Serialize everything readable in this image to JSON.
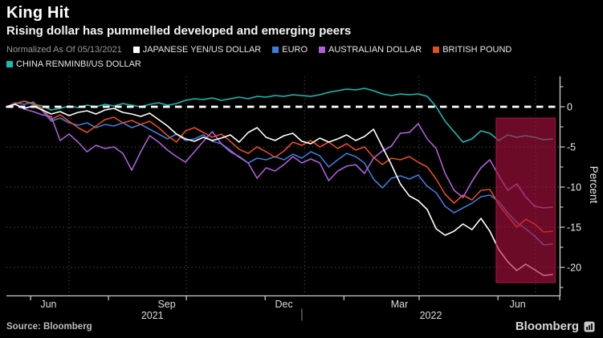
{
  "header": {
    "title": "King Hit",
    "subtitle": "Rising dollar has pummelled developed and emerging peers"
  },
  "legend": {
    "note": "Normalized As Of 05/13/2021",
    "rows": [
      [
        {
          "label": "JAPANESE YEN/US DOLLAR",
          "color": "#FFFFFF"
        },
        {
          "label": "EURO",
          "color": "#3B7CDC"
        },
        {
          "label": "AUSTRALIAN DOLLAR",
          "color": "#AE5FD9"
        },
        {
          "label": "BRITISH POUND",
          "color": "#E54D1F"
        }
      ],
      [
        {
          "label": "CHINA RENMINBI/US DOLLAR",
          "color": "#16BDB4"
        }
      ]
    ]
  },
  "footer": {
    "source": "Source: Bloomberg",
    "brand": "Bloomberg"
  },
  "chart_data": {
    "type": "line",
    "title": "King Hit",
    "subtitle": "Rising dollar has pummelled developed and emerging peers",
    "ylabel": "Percent",
    "ylim": [
      -23.5,
      3.8
    ],
    "y_ticks": [
      0,
      -5,
      -10,
      -15,
      -20
    ],
    "y_minor_ticks": [
      2.5,
      -2.5,
      -7.5,
      -12.5,
      -17.5,
      -22.5
    ],
    "grid": true,
    "legend_position": "top",
    "x_axis": {
      "start_date": "2021-05-13",
      "unit": "weeks since 2021-05-13",
      "month_labels": [
        {
          "label": "Jun",
          "week": 4.7
        },
        {
          "label": "Sep",
          "week": 17.9
        },
        {
          "label": "Dec",
          "week": 31.0
        },
        {
          "label": "Mar",
          "week": 43.9
        },
        {
          "label": "Jun",
          "week": 57.1
        }
      ],
      "year_labels": [
        {
          "label": "2021",
          "week": 16.3
        },
        {
          "label": "2022",
          "week": 47.4
        }
      ],
      "year_divider_week": 33.0,
      "tick_weeks": [
        2.7,
        11.4,
        20.1,
        28.9,
        37.7,
        46.1,
        54.9,
        61.8
      ],
      "gridline_weeks": [
        7.0,
        20.1,
        33.3,
        46.1,
        59.1
      ]
    },
    "zero_line": {
      "value": 0,
      "color": "#FFFFFF",
      "style": "dashed"
    },
    "highlight_region": {
      "start_week": 54.7,
      "end_week": 61.3,
      "from": -1.4,
      "to": -21.9,
      "color": "#AE1240",
      "opacity": 0.62,
      "border_color": "#C51349"
    },
    "series": [
      {
        "name": "JAPANESE YEN/US DOLLAR",
        "color": "#FFFFFF",
        "values": [
          0,
          0.3,
          -0.2,
          0.1,
          -0.4,
          -0.9,
          -0.6,
          -1.1,
          -0.7,
          -0.5,
          -0.9,
          -0.4,
          -0.2,
          -0.7,
          -0.9,
          -1.2,
          -0.8,
          -1.6,
          -2.4,
          -3.4,
          -4.0,
          -4.3,
          -3.8,
          -4.2,
          -3.9,
          -3.5,
          -4.4,
          -3.2,
          -2.6,
          -3.8,
          -4.2,
          -3.6,
          -3.3,
          -4.3,
          -4.6,
          -3.9,
          -4.4,
          -4.0,
          -3.5,
          -4.2,
          -3.7,
          -2.8,
          -5.0,
          -7.2,
          -9.6,
          -11.1,
          -11.7,
          -12.8,
          -15.2,
          -16.0,
          -15.5,
          -14.6,
          -15.3,
          -13.9,
          -15.5,
          -17.8,
          -19.3,
          -20.4,
          -19.6,
          -20.3,
          -21.0,
          -20.9
        ]
      },
      {
        "name": "EURO",
        "color": "#3B7CDC",
        "values": [
          0,
          0.5,
          0.3,
          0.6,
          -0.5,
          -1.8,
          -1.4,
          -2.0,
          -2.3,
          -2.0,
          -2.6,
          -2.2,
          -2.4,
          -2.0,
          -2.6,
          -2.2,
          -2.8,
          -3.4,
          -4.0,
          -3.4,
          -4.2,
          -4.0,
          -3.5,
          -4.3,
          -4.6,
          -5.4,
          -6.3,
          -7.0,
          -6.4,
          -6.6,
          -6.2,
          -6.6,
          -5.9,
          -6.4,
          -5.6,
          -6.1,
          -7.5,
          -6.6,
          -5.8,
          -6.2,
          -7.0,
          -9.0,
          -10.1,
          -8.9,
          -8.6,
          -9.0,
          -8.5,
          -9.9,
          -10.7,
          -12.4,
          -13.2,
          -12.6,
          -12.0,
          -11.2,
          -11.0,
          -11.8,
          -13.2,
          -14.4,
          -15.2,
          -16.1,
          -17.2,
          -17.1
        ]
      },
      {
        "name": "AUSTRALIAN DOLLAR",
        "color": "#AE5FD9",
        "values": [
          0,
          0.3,
          -0.3,
          -0.6,
          -1.0,
          -1.2,
          -4.2,
          -3.4,
          -4.4,
          -5.6,
          -4.8,
          -5.2,
          -5.0,
          -5.8,
          -7.9,
          -5.6,
          -3.6,
          -4.4,
          -5.4,
          -6.2,
          -6.9,
          -5.6,
          -4.3,
          -3.1,
          -4.6,
          -5.6,
          -6.2,
          -7.0,
          -8.9,
          -7.6,
          -8.0,
          -7.2,
          -6.2,
          -7.0,
          -6.5,
          -7.0,
          -9.2,
          -8.0,
          -7.4,
          -7.2,
          -8.3,
          -6.4,
          -5.5,
          -4.9,
          -3.3,
          -3.2,
          -2.1,
          -4.0,
          -5.2,
          -8.3,
          -10.4,
          -11.3,
          -9.3,
          -7.6,
          -6.6,
          -8.6,
          -10.4,
          -9.6,
          -11.2,
          -12.4,
          -12.6,
          -12.5
        ]
      },
      {
        "name": "BRITISH POUND",
        "color": "#E54D1F",
        "values": [
          0,
          0.4,
          0.7,
          0.4,
          -0.2,
          -1.6,
          -1.0,
          -1.8,
          -2.6,
          -3.2,
          -2.4,
          -1.6,
          -1.3,
          -2.0,
          -1.7,
          -2.2,
          -1.8,
          -2.6,
          -3.6,
          -4.4,
          -3.0,
          -2.6,
          -3.2,
          -3.8,
          -3.4,
          -4.3,
          -5.3,
          -5.8,
          -5.0,
          -5.6,
          -6.3,
          -5.5,
          -4.4,
          -4.8,
          -4.2,
          -5.0,
          -4.4,
          -5.2,
          -4.6,
          -5.4,
          -5.0,
          -6.3,
          -7.2,
          -6.4,
          -6.6,
          -6.2,
          -6.9,
          -7.5,
          -9.0,
          -10.9,
          -12.0,
          -11.0,
          -11.6,
          -10.4,
          -10.3,
          -12.2,
          -13.6,
          -15.0,
          -14.0,
          -14.6,
          -15.6,
          -15.5
        ]
      },
      {
        "name": "CHINA RENMINBI/US DOLLAR",
        "color": "#16BDB4",
        "values": [
          0,
          0.4,
          0.7,
          0.3,
          0.1,
          -0.4,
          -0.2,
          0.1,
          -0.1,
          0.2,
          0.0,
          0.3,
          0.1,
          0.4,
          0.2,
          0.0,
          0.3,
          0.5,
          0.2,
          0.4,
          0.8,
          1.0,
          0.9,
          1.1,
          0.8,
          1.0,
          1.2,
          1.0,
          1.3,
          1.2,
          1.4,
          1.3,
          1.5,
          1.4,
          1.3,
          1.5,
          1.8,
          2.0,
          2.2,
          2.1,
          2.3,
          2.0,
          1.6,
          1.4,
          1.6,
          1.5,
          1.6,
          1.3,
          0.0,
          -1.8,
          -3.1,
          -4.4,
          -4.0,
          -3.0,
          -3.3,
          -4.2,
          -3.5,
          -3.8,
          -3.6,
          -3.8,
          -4.1,
          -4.0
        ]
      }
    ]
  }
}
